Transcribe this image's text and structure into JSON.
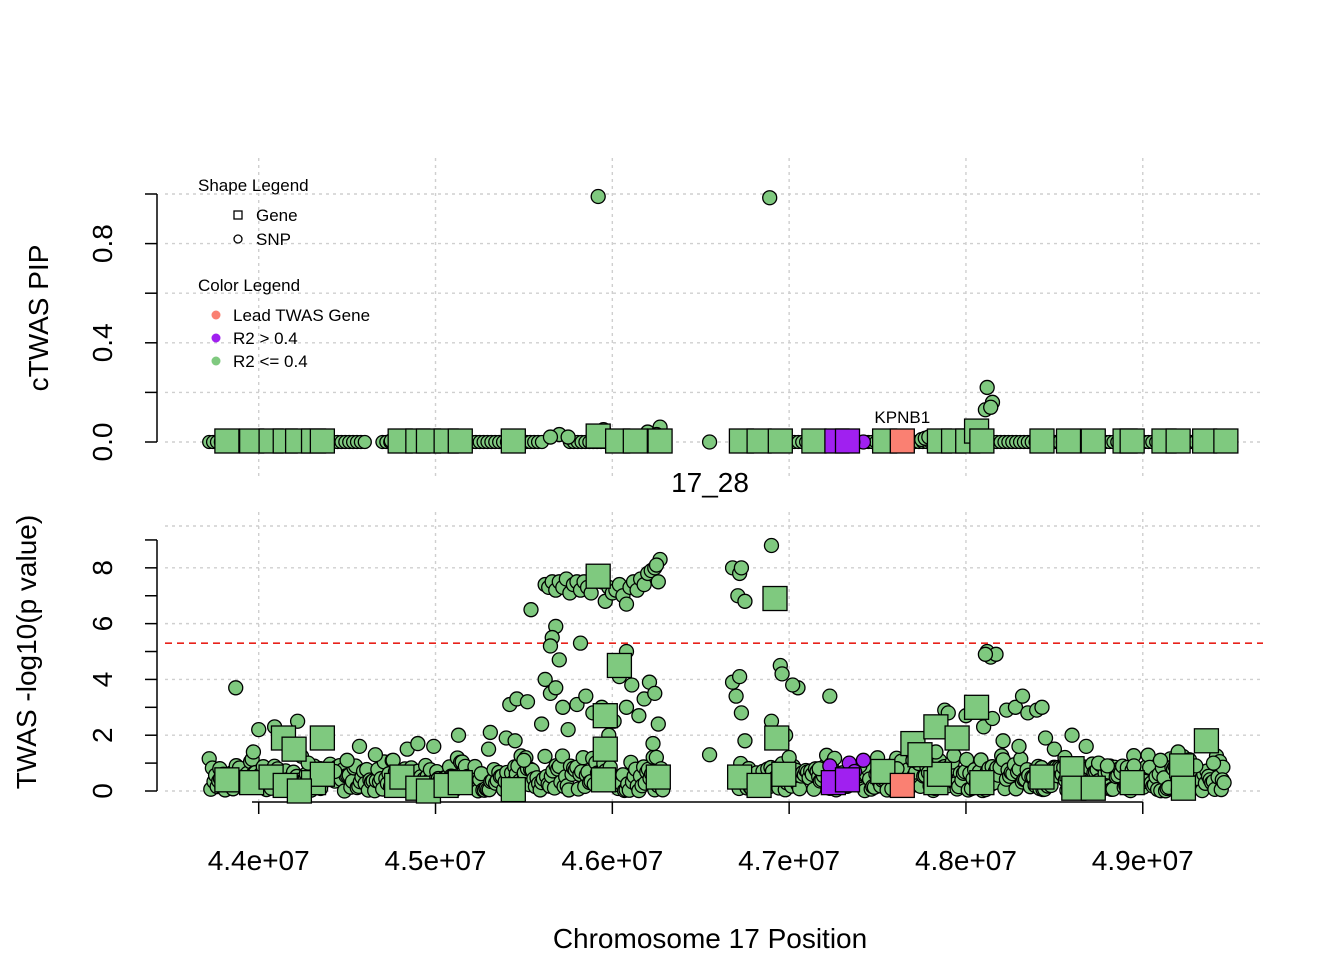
{
  "chart_data": [
    {
      "type": "scatter",
      "panel": "top",
      "ylabel": "cTWAS PIP",
      "ylim": [
        0,
        1
      ],
      "yticks": [
        0.0,
        0.4,
        0.8
      ],
      "ytick_labels": [
        "0.0",
        "0.4",
        "0.8"
      ],
      "xlim": [
        43470000,
        49680000
      ],
      "xticks": [
        44000000,
        45000000,
        46000000,
        47000000,
        48000000,
        49000000
      ],
      "grid": true,
      "legends": {
        "shape": {
          "title": "Shape Legend",
          "items": [
            {
              "label": "Gene",
              "shape": "square"
            },
            {
              "label": "SNP",
              "shape": "circle"
            }
          ]
        },
        "color": {
          "title": "Color Legend",
          "items": [
            {
              "label": "Lead TWAS Gene",
              "color": "#fa8072"
            },
            {
              "label": "R2 > 0.4",
              "color": "#a020f0"
            },
            {
              "label": "R2 <= 0.4",
              "color": "#7fc97f"
            }
          ]
        }
      },
      "annotation": {
        "text": "KPNB1",
        "x": 47640000,
        "y": 0.0
      },
      "snps": [
        [
          45920000,
          0.99
        ],
        [
          46890000,
          0.985
        ],
        [
          48120000,
          0.22
        ],
        [
          48150000,
          0.16
        ],
        [
          48110000,
          0.13
        ],
        [
          48140000,
          0.14
        ],
        [
          46270000,
          0.06
        ],
        [
          46200000,
          0.04
        ],
        [
          45950000,
          0.05
        ],
        [
          45700000,
          0.03
        ],
        [
          45750000,
          0.02
        ],
        [
          45650000,
          0.02
        ],
        [
          46250000,
          0.03
        ],
        [
          48060000,
          0.05
        ],
        [
          47750000,
          0.01
        ],
        [
          47770000,
          0.015
        ],
        [
          47790000,
          0.02
        ],
        [
          47900000,
          0.012
        ],
        [
          46550000,
          0.0
        ],
        [
          48400000,
          0.01
        ],
        [
          44750000,
          0.005
        ],
        [
          47300000,
          0.0
        ]
      ],
      "purple_snps": [
        [
          47420000,
          0.0
        ],
        [
          47360000,
          0.0
        ]
      ],
      "snp_baseline": [
        [
          43720000,
          44620000
        ],
        [
          44700000,
          45620000
        ],
        [
          45760000,
          46280000
        ],
        [
          46700000,
          49460000
        ]
      ],
      "genes": [
        [
          43820000,
          0.0
        ],
        [
          43960000,
          0.0
        ],
        [
          44070000,
          0.0
        ],
        [
          44150000,
          0.0
        ],
        [
          44220000,
          0.0
        ],
        [
          44310000,
          0.0
        ],
        [
          44360000,
          0.0
        ],
        [
          44800000,
          0.0
        ],
        [
          44900000,
          0.0
        ],
        [
          44960000,
          0.0
        ],
        [
          45060000,
          0.0
        ],
        [
          45140000,
          0.0
        ],
        [
          45440000,
          0.0
        ],
        [
          45920000,
          0.02
        ],
        [
          46030000,
          0.0
        ],
        [
          46130000,
          0.0
        ],
        [
          46270000,
          0.0
        ],
        [
          46730000,
          0.0
        ],
        [
          46830000,
          0.0
        ],
        [
          46950000,
          0.0
        ],
        [
          47140000,
          0.0
        ],
        [
          47540000,
          0.0
        ],
        [
          47850000,
          0.0
        ],
        [
          47930000,
          0.0
        ],
        [
          48010000,
          0.0
        ],
        [
          48060000,
          0.04
        ],
        [
          48090000,
          0.0
        ],
        [
          48430000,
          0.0
        ],
        [
          48580000,
          0.0
        ],
        [
          48720000,
          0.0
        ],
        [
          48900000,
          0.0
        ],
        [
          48940000,
          0.0
        ],
        [
          49120000,
          0.0
        ],
        [
          49200000,
          0.0
        ],
        [
          49350000,
          0.0
        ],
        [
          49470000,
          0.0
        ]
      ],
      "purple_genes": [
        [
          47270000,
          0.0
        ],
        [
          47330000,
          0.0
        ]
      ],
      "lead_gene": [
        47640000,
        0.0
      ]
    },
    {
      "type": "scatter",
      "panel": "bottom",
      "title": "17_28",
      "xlabel": "Chromosome 17 Position",
      "ylabel": "TWAS -log10(p value)",
      "ylim": [
        0,
        9.5
      ],
      "yticks": [
        0,
        2,
        4,
        6,
        8
      ],
      "ytick_labels": [
        "0",
        "2",
        "4",
        "6",
        "8"
      ],
      "xlim": [
        43470000,
        49680000
      ],
      "xticks": [
        44000000,
        45000000,
        46000000,
        47000000,
        48000000,
        49000000
      ],
      "xtick_labels": [
        "4.4e+07",
        "4.5e+07",
        "4.6e+07",
        "4.7e+07",
        "4.8e+07",
        "4.9e+07"
      ],
      "threshold": 5.3,
      "grid": true,
      "snps": [
        [
          43870000,
          3.7
        ],
        [
          43780000,
          0.8
        ],
        [
          43800000,
          0.6
        ],
        [
          44000000,
          2.2
        ],
        [
          43970000,
          1.4
        ],
        [
          44220000,
          2.5
        ],
        [
          44090000,
          2.3
        ],
        [
          44280000,
          1.0
        ],
        [
          44350000,
          0.8
        ],
        [
          44430000,
          0.7
        ],
        [
          44500000,
          1.1
        ],
        [
          44570000,
          1.6
        ],
        [
          44660000,
          1.3
        ],
        [
          44760000,
          1.1
        ],
        [
          44840000,
          1.5
        ],
        [
          44900000,
          1.7
        ],
        [
          44990000,
          1.6
        ],
        [
          45130000,
          2.0
        ],
        [
          45300000,
          1.5
        ],
        [
          45310000,
          2.1
        ],
        [
          45400000,
          1.9
        ],
        [
          45450000,
          1.8
        ],
        [
          45500000,
          1.1
        ],
        [
          45420000,
          3.1
        ],
        [
          45460000,
          3.3
        ],
        [
          45520000,
          3.2
        ],
        [
          45620000,
          4.0
        ],
        [
          45650000,
          3.5
        ],
        [
          45680000,
          3.7
        ],
        [
          45720000,
          3.0
        ],
        [
          45600000,
          2.4
        ],
        [
          45750000,
          2.2
        ],
        [
          45800000,
          3.1
        ],
        [
          45850000,
          3.4
        ],
        [
          45890000,
          2.8
        ],
        [
          45940000,
          3.0
        ],
        [
          45980000,
          2.0
        ],
        [
          46010000,
          2.5
        ],
        [
          46040000,
          4.1
        ],
        [
          46080000,
          3.0
        ],
        [
          46110000,
          3.8
        ],
        [
          46150000,
          2.7
        ],
        [
          46180000,
          3.3
        ],
        [
          46210000,
          3.9
        ],
        [
          46240000,
          3.5
        ],
        [
          46260000,
          2.4
        ],
        [
          46230000,
          1.7
        ],
        [
          45540000,
          6.5
        ],
        [
          45680000,
          5.9
        ],
        [
          45660000,
          5.5
        ],
        [
          45650000,
          5.2
        ],
        [
          45700000,
          4.7
        ],
        [
          45820000,
          5.3
        ],
        [
          46080000,
          5.0
        ],
        [
          45620000,
          7.4
        ],
        [
          45640000,
          7.3
        ],
        [
          45660000,
          7.5
        ],
        [
          45680000,
          7.2
        ],
        [
          45700000,
          7.5
        ],
        [
          45720000,
          7.3
        ],
        [
          45740000,
          7.6
        ],
        [
          45760000,
          7.1
        ],
        [
          45780000,
          7.4
        ],
        [
          45800000,
          7.5
        ],
        [
          45820000,
          7.2
        ],
        [
          45840000,
          7.5
        ],
        [
          45860000,
          7.3
        ],
        [
          45880000,
          7.1
        ],
        [
          45940000,
          7.5
        ],
        [
          45960000,
          6.8
        ],
        [
          45980000,
          7.3
        ],
        [
          46000000,
          7.1
        ],
        [
          46020000,
          7.2
        ],
        [
          46040000,
          7.4
        ],
        [
          46060000,
          7.0
        ],
        [
          46080000,
          6.7
        ],
        [
          46100000,
          7.3
        ],
        [
          46120000,
          7.5
        ],
        [
          46140000,
          7.2
        ],
        [
          46160000,
          7.6
        ],
        [
          46180000,
          7.4
        ],
        [
          46200000,
          7.8
        ],
        [
          46220000,
          7.9
        ],
        [
          46240000,
          8.0
        ],
        [
          46270000,
          8.3
        ],
        [
          46260000,
          7.5
        ],
        [
          46250000,
          8.1
        ],
        [
          46550000,
          1.3
        ],
        [
          46680000,
          8.0
        ],
        [
          46720000,
          7.8
        ],
        [
          46730000,
          8.0
        ],
        [
          46710000,
          7.0
        ],
        [
          46750000,
          6.8
        ],
        [
          46900000,
          8.8
        ],
        [
          46680000,
          3.9
        ],
        [
          46720000,
          4.1
        ],
        [
          46700000,
          3.4
        ],
        [
          46730000,
          2.8
        ],
        [
          46750000,
          1.8
        ],
        [
          46950000,
          4.5
        ],
        [
          46960000,
          4.2
        ],
        [
          47050000,
          3.7
        ],
        [
          47020000,
          3.8
        ],
        [
          46980000,
          2.0
        ],
        [
          46900000,
          2.5
        ],
        [
          47000000,
          1.2
        ],
        [
          47230000,
          3.4
        ],
        [
          47170000,
          0.8
        ],
        [
          47400000,
          0.9
        ],
        [
          47500000,
          0.7
        ],
        [
          47610000,
          0.8
        ],
        [
          47700000,
          1.1
        ],
        [
          47830000,
          1.4
        ],
        [
          47880000,
          2.9
        ],
        [
          47900000,
          2.8
        ],
        [
          48000000,
          2.7
        ],
        [
          48100000,
          2.3
        ],
        [
          48150000,
          2.6
        ],
        [
          48230000,
          2.9
        ],
        [
          48280000,
          3.0
        ],
        [
          48320000,
          3.4
        ],
        [
          48350000,
          2.8
        ],
        [
          48400000,
          2.9
        ],
        [
          48430000,
          3.0
        ],
        [
          48210000,
          1.8
        ],
        [
          48300000,
          1.6
        ],
        [
          48450000,
          1.9
        ],
        [
          48500000,
          1.5
        ],
        [
          48560000,
          1.2
        ],
        [
          48600000,
          2.0
        ],
        [
          48680000,
          1.6
        ],
        [
          48750000,
          1.0
        ],
        [
          48120000,
          5.0
        ],
        [
          48140000,
          4.8
        ],
        [
          48170000,
          4.9
        ],
        [
          48110000,
          4.9
        ],
        [
          48800000,
          0.9
        ],
        [
          48950000,
          0.9
        ],
        [
          49100000,
          1.1
        ],
        [
          49200000,
          1.4
        ],
        [
          49300000,
          0.9
        ],
        [
          49400000,
          1.0
        ],
        [
          49450000,
          0.4
        ],
        [
          49460000,
          0.3
        ]
      ],
      "purple_snps": [
        [
          47230000,
          0.9
        ],
        [
          47340000,
          1.0
        ],
        [
          47420000,
          1.1
        ],
        [
          47370000,
          0.7
        ]
      ],
      "snp_band": [
        43720000,
        49460000,
        0.0,
        1.3
      ],
      "band_gaps": [
        [
          46290000,
          46700000
        ]
      ],
      "genes": [
        [
          43820000,
          0.4
        ],
        [
          43960000,
          0.3
        ],
        [
          44070000,
          0.5
        ],
        [
          44150000,
          0.2
        ],
        [
          44140000,
          1.9
        ],
        [
          44360000,
          1.9
        ],
        [
          44200000,
          1.5
        ],
        [
          44310000,
          0.3
        ],
        [
          44360000,
          0.6
        ],
        [
          44230000,
          0.0
        ],
        [
          44780000,
          0.2
        ],
        [
          44810000,
          0.5
        ],
        [
          44900000,
          0.1
        ],
        [
          44960000,
          0.0
        ],
        [
          45060000,
          0.2
        ],
        [
          45140000,
          0.3
        ],
        [
          45440000,
          0.05
        ],
        [
          45920000,
          7.7
        ],
        [
          46040000,
          4.5
        ],
        [
          45960000,
          2.7
        ],
        [
          45960000,
          1.5
        ],
        [
          45950000,
          0.4
        ],
        [
          46260000,
          0.5
        ],
        [
          46720000,
          0.5
        ],
        [
          46830000,
          0.2
        ],
        [
          46930000,
          1.9
        ],
        [
          46970000,
          0.6
        ],
        [
          46920000,
          6.9
        ],
        [
          47530000,
          0.7
        ],
        [
          47700000,
          1.7
        ],
        [
          47830000,
          2.3
        ],
        [
          47830000,
          0.3
        ],
        [
          47850000,
          0.6
        ],
        [
          47950000,
          1.9
        ],
        [
          48060000,
          3.0
        ],
        [
          48090000,
          0.3
        ],
        [
          48430000,
          0.5
        ],
        [
          48600000,
          0.8
        ],
        [
          48610000,
          0.1
        ],
        [
          48720000,
          0.1
        ],
        [
          48940000,
          0.3
        ],
        [
          49220000,
          0.9
        ],
        [
          49230000,
          0.1
        ],
        [
          49360000,
          1.8
        ],
        [
          47740000,
          1.3
        ]
      ],
      "purple_genes": [
        [
          47250000,
          0.3
        ],
        [
          47330000,
          0.4
        ]
      ],
      "lead_gene": [
        47640000,
        0.2
      ]
    }
  ]
}
